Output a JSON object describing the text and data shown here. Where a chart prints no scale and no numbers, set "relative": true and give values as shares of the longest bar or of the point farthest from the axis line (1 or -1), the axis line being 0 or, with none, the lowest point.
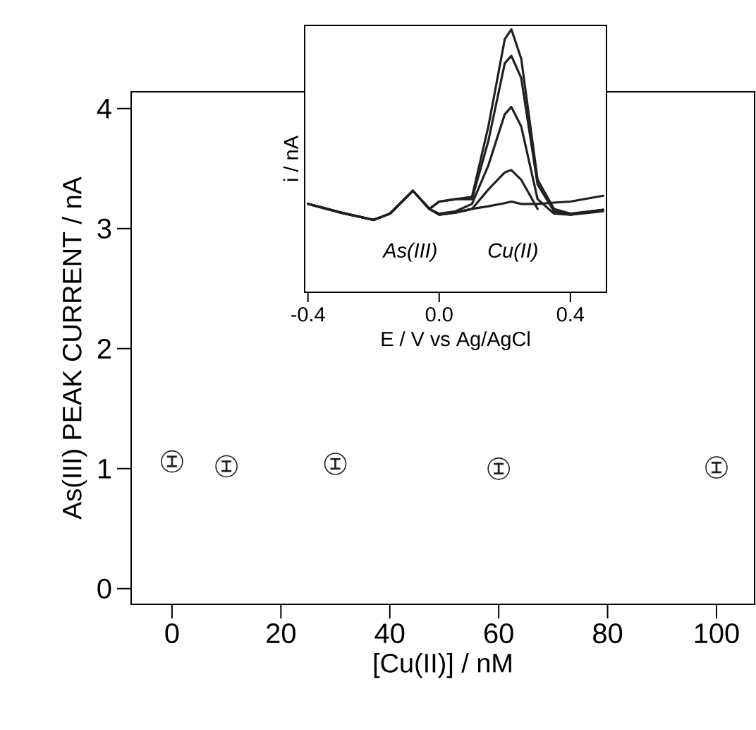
{
  "chart_data": [
    {
      "type": "scatter",
      "xlabel": "[Cu(II)] / nM",
      "ylabel": "As(III) PEAK CURRENT / nA",
      "x": [
        0,
        10,
        30,
        60,
        100
      ],
      "values": [
        1.06,
        1.02,
        1.04,
        1.0,
        1.01
      ],
      "errors": [
        0.04,
        0.04,
        0.04,
        0.04,
        0.04
      ],
      "color": "#231f20",
      "marker": "circle",
      "grid": false,
      "xlim": [
        -7.5,
        107
      ],
      "ylim": [
        -0.13,
        4.14
      ],
      "xticks": [
        0,
        20,
        40,
        60,
        80,
        100
      ],
      "yticks": [
        0,
        1,
        2,
        3,
        4
      ]
    },
    {
      "type": "line",
      "xlabel": "E / V vs Ag/AgCl",
      "ylabel": "i / nA",
      "relative": true,
      "line_style": "solid",
      "marker": "none",
      "grid": false,
      "tick_labels": "x",
      "xlim": [
        -0.41,
        0.51
      ],
      "xticks": [
        {
          "value": -0.4,
          "label": "-0.4"
        },
        {
          "value": 0.0,
          "label": "0.0"
        },
        {
          "value": 0.4,
          "label": "0.4"
        }
      ],
      "x": [
        -0.4,
        -0.3,
        -0.2,
        -0.15,
        -0.08,
        -0.03,
        0.0,
        0.05,
        0.1,
        0.15,
        0.2,
        0.22,
        0.25,
        0.3,
        0.35,
        0.4,
        0.5
      ],
      "series": [
        {
          "color": "#231f20",
          "values": [
            0.336,
            0.303,
            0.275,
            0.299,
            0.386,
            0.317,
            0.345,
            0.354,
            0.363,
            0.631,
            0.963,
            1.0,
            0.889,
            0.428,
            0.317,
            0.299,
            0.314
          ]
        },
        {
          "color": "#231f20",
          "values": [
            0.336,
            0.303,
            0.275,
            0.299,
            0.386,
            0.317,
            0.345,
            0.354,
            0.354,
            0.576,
            0.871,
            0.899,
            0.815,
            0.41,
            0.308,
            0.295,
            0.314
          ]
        },
        {
          "color": "#231f20",
          "values": [
            0.336,
            0.303,
            0.275,
            0.299,
            0.386,
            0.317,
            0.299,
            0.308,
            0.336,
            0.483,
            0.677,
            0.705,
            0.631,
            0.354,
            0.299,
            0.295,
            0.308
          ]
        },
        {
          "color": "#231f20",
          "values": [
            0.336,
            0.303,
            0.275,
            0.299,
            0.386,
            0.317,
            0.295,
            0.303,
            0.317,
            0.391,
            0.456,
            0.465,
            0.428,
            0.317,
            null,
            null,
            null
          ]
        },
        {
          "color": "#231f20",
          "values": [
            0.336,
            0.303,
            0.275,
            0.299,
            0.386,
            0.317,
            0.295,
            0.303,
            0.317,
            0.327,
            0.339,
            0.345,
            0.336,
            0.336,
            0.341,
            0.345,
            0.367
          ]
        }
      ],
      "annotations": [
        "As(III)",
        "Cu(II)"
      ]
    }
  ]
}
